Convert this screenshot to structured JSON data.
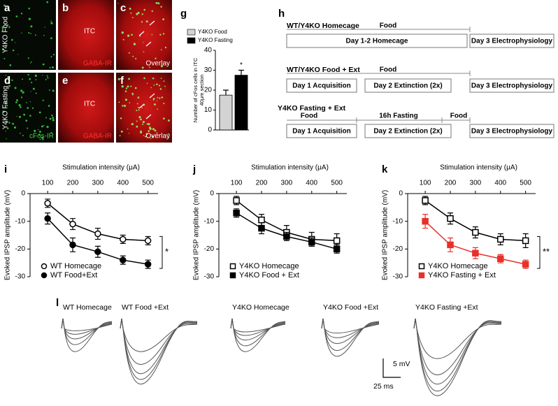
{
  "micrographs": {
    "row_labels": [
      "Y4KO Food",
      "Y4KO Fasting"
    ],
    "tiles": [
      {
        "letter": "a"
      },
      {
        "letter": "b",
        "region": "ITC",
        "stain": "GABA-IR"
      },
      {
        "letter": "c",
        "stain": "Overlay"
      },
      {
        "letter": "d",
        "stain": "cFos-IR"
      },
      {
        "letter": "e",
        "region": "ITC",
        "stain": "GABA-IR"
      },
      {
        "letter": "f",
        "stain": "Overlay"
      }
    ]
  },
  "chart_data": [
    {
      "type": "bar",
      "panel": "g",
      "ylabel": [
        "Number of cFos cells in ITC",
        "40μm section"
      ],
      "categories": [
        null
      ],
      "series": [
        {
          "name": "Y4KO Food",
          "color": "#d3d3d3",
          "values": [
            17.5
          ],
          "errors": [
            2.5
          ]
        },
        {
          "name": "Y4KO Fasting",
          "color": "#000000",
          "values": [
            27.5
          ],
          "errors": [
            2.5
          ]
        }
      ],
      "ylim": [
        0,
        40
      ],
      "yticks": [
        0,
        10,
        20,
        30,
        40
      ],
      "annotation": "*",
      "legend": "upper left"
    },
    {
      "type": "line",
      "panel": "i",
      "xlabel": "Stimulation intensity (μA)",
      "ylabel": "Evoked IPSP amplitude (mV)",
      "x": [
        100,
        200,
        300,
        400,
        500
      ],
      "xlim": [
        30,
        540
      ],
      "xticks": [
        100,
        200,
        300,
        400,
        500
      ],
      "ylim": [
        -30,
        0
      ],
      "yticks": [
        0,
        -10,
        -20,
        -30
      ],
      "legend": "lower left",
      "annotation": "*",
      "series": [
        {
          "name": "WT Homecage",
          "color": "#000000",
          "marker": "circle",
          "filled": false,
          "values": [
            -3.5,
            -11,
            -14.5,
            -16.5,
            -17
          ],
          "errors": [
            1.5,
            2,
            2,
            1.5,
            1.5
          ]
        },
        {
          "name": "WT Food+Ext",
          "color": "#000000",
          "marker": "circle",
          "filled": true,
          "values": [
            -9,
            -18.5,
            -21,
            -24,
            -25.5
          ],
          "errors": [
            2,
            2.5,
            2,
            1.5,
            1.5
          ]
        }
      ]
    },
    {
      "type": "line",
      "panel": "j",
      "xlabel": "Stimulation intensity (μA)",
      "ylabel": "Evoked IPSP amplitude (mV)",
      "x": [
        100,
        200,
        300,
        400,
        500
      ],
      "xlim": [
        30,
        540
      ],
      "xticks": [
        100,
        200,
        300,
        400,
        500
      ],
      "ylim": [
        -30,
        0
      ],
      "yticks": [
        0,
        -10,
        -20,
        -30
      ],
      "legend": "lower left",
      "series": [
        {
          "name": "Y4KO Homecage",
          "color": "#000000",
          "marker": "square",
          "filled": false,
          "values": [
            -2.5,
            -9.5,
            -14,
            -16.5,
            -17
          ],
          "errors": [
            1.5,
            2,
            2.5,
            2.5,
            2.5
          ]
        },
        {
          "name": "Y4KO Food + Ext",
          "color": "#000000",
          "marker": "square",
          "filled": true,
          "values": [
            -7,
            -12.5,
            -15.5,
            -17.5,
            -20
          ],
          "errors": [
            1.5,
            2,
            1.5,
            1.5,
            1.5
          ]
        }
      ]
    },
    {
      "type": "line",
      "panel": "k",
      "xlabel": "Stimulation intensity (μA)",
      "ylabel": "Evoked IPSP amplitude (mV)",
      "x": [
        100,
        200,
        300,
        400,
        500
      ],
      "xlim": [
        30,
        540
      ],
      "xticks": [
        100,
        200,
        300,
        400,
        500
      ],
      "ylim": [
        -30,
        0
      ],
      "yticks": [
        0,
        -10,
        -20,
        -30
      ],
      "legend": "lower left",
      "annotation": "**",
      "series": [
        {
          "name": "Y4KO Homecage",
          "color": "#000000",
          "marker": "square",
          "filled": false,
          "values": [
            -2.5,
            -9,
            -14,
            -16.5,
            -17
          ],
          "errors": [
            1.5,
            2,
            2,
            2,
            2.5
          ]
        },
        {
          "name": "Y4KO Fasting + Ext",
          "color": "#e8302a",
          "marker": "square",
          "filled": true,
          "values": [
            -10,
            -18.5,
            -21.5,
            -23.5,
            -25.5
          ],
          "errors": [
            2.5,
            2.5,
            2,
            1.5,
            1.5
          ]
        }
      ]
    }
  ],
  "timeline": {
    "panel": "h",
    "rows": [
      {
        "title": "WT/Y4KO Homecage",
        "phases": [
          "Food"
        ],
        "boxes": [
          "Day 1-2 Homecage",
          "Day 3 Electrophysiology"
        ]
      },
      {
        "title": "WT/Y4KO Food + Ext",
        "phases": [
          "Food"
        ],
        "boxes": [
          "Day 1 Acquisition",
          "Day 2 Extinction (2x)",
          "Day 3 Electrophysiology"
        ]
      },
      {
        "title": "Y4KO Fasting + Ext",
        "phases": [
          "Food",
          "16h Fasting",
          "Food"
        ],
        "boxes": [
          "Day 1 Acquisition",
          "Day 2 Extinction (2x)",
          "Day 3 Electrophysiology"
        ]
      }
    ]
  },
  "traces": {
    "panel": "l",
    "groups": [
      "WT Homecage",
      "WT Food +Ext",
      "Y4KO Homecage",
      "Y4KO Food +Ext",
      "Y4KO Fasting +Ext"
    ],
    "scale_y": "5 mV",
    "scale_x": "25 ms"
  }
}
